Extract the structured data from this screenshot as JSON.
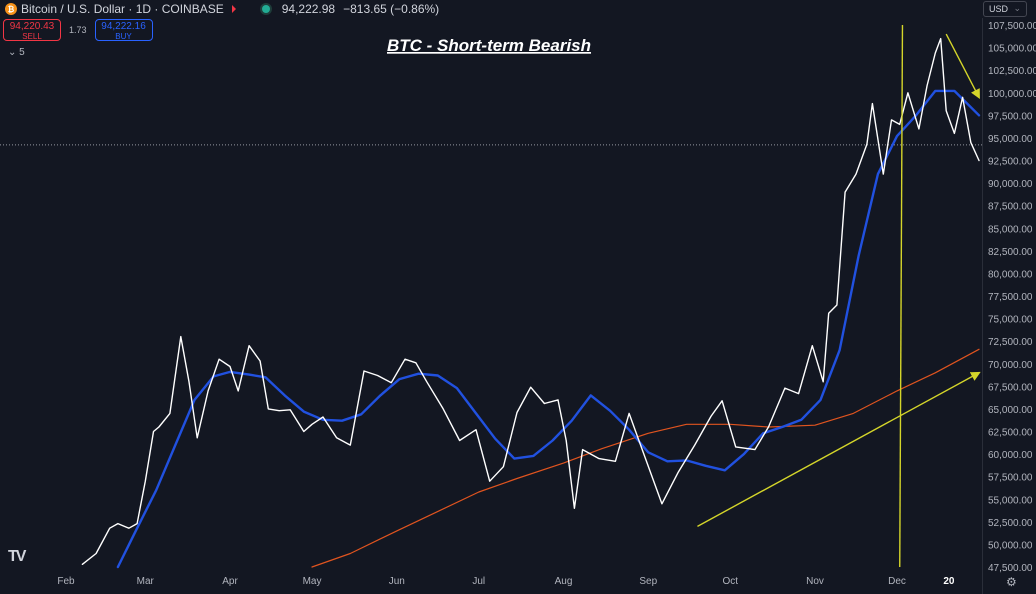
{
  "header": {
    "symbol": "Bitcoin / U.S. Dollar · 1D · COINBASE",
    "last_price": "94,222.98",
    "change": "−813.65 (−0.86%)",
    "sell_price": "94,220.43",
    "sell_label": "SELL",
    "spread": "1.73",
    "buy_price": "94,222.16",
    "buy_label": "BUY",
    "indicators_count": "5",
    "currency": "USD",
    "logo_glyph": "₿",
    "watermark": "TV"
  },
  "colors": {
    "background": "#131722",
    "price_line": "#ffffff",
    "ema_short": "#2151e0",
    "ema_long": "#e0541f",
    "annotation": "#d4d52a"
  },
  "chart_data": {
    "type": "line",
    "title": "BTC - Short-term Bearish",
    "xlabel": "",
    "ylabel": "",
    "x_ticks": [
      "Feb",
      "Mar",
      "Apr",
      "May",
      "Jun",
      "Jul",
      "Aug",
      "Sep",
      "Oct",
      "Nov",
      "Dec",
      "20"
    ],
    "y_ticks": [
      "107,500.00",
      "105,000.00",
      "102,500.00",
      "100,000.00",
      "97,500.00",
      "95,000.00",
      "92,500.00",
      "90,000.00",
      "87,500.00",
      "85,000.00",
      "82,500.00",
      "80,000.00",
      "77,500.00",
      "75,000.00",
      "72,500.00",
      "70,000.00",
      "67,500.00",
      "65,000.00",
      "62,500.00",
      "60,000.00",
      "57,500.00",
      "55,000.00",
      "52,500.00",
      "50,000.00",
      "47,500.00"
    ],
    "ylim": [
      47500,
      107500
    ],
    "current_price_line": 94222.98,
    "grid": false,
    "series": [
      {
        "name": "",
        "role": "price",
        "x": [
          "2024-02-07",
          "2024-02-12",
          "2024-02-17",
          "2024-02-20",
          "2024-02-24",
          "2024-02-27",
          "2024-03-01",
          "2024-03-04",
          "2024-03-06",
          "2024-03-10",
          "2024-03-14",
          "2024-03-17",
          "2024-03-20",
          "2024-03-24",
          "2024-03-28",
          "2024-04-01",
          "2024-04-04",
          "2024-04-08",
          "2024-04-12",
          "2024-04-15",
          "2024-04-19",
          "2024-04-23",
          "2024-04-28",
          "2024-05-01",
          "2024-05-05",
          "2024-05-10",
          "2024-05-15",
          "2024-05-20",
          "2024-05-25",
          "2024-05-30",
          "2024-06-04",
          "2024-06-08",
          "2024-06-12",
          "2024-06-18",
          "2024-06-24",
          "2024-06-30",
          "2024-07-05",
          "2024-07-10",
          "2024-07-15",
          "2024-07-20",
          "2024-07-25",
          "2024-07-30",
          "2024-08-02",
          "2024-08-05",
          "2024-08-08",
          "2024-08-14",
          "2024-08-20",
          "2024-08-25",
          "2024-08-31",
          "2024-09-06",
          "2024-09-12",
          "2024-09-18",
          "2024-09-24",
          "2024-09-28",
          "2024-10-03",
          "2024-10-10",
          "2024-10-15",
          "2024-10-21",
          "2024-10-26",
          "2024-10-31",
          "2024-11-04",
          "2024-11-06",
          "2024-11-09",
          "2024-11-12",
          "2024-11-16",
          "2024-11-20",
          "2024-11-22",
          "2024-11-26",
          "2024-11-29",
          "2024-12-02",
          "2024-12-05",
          "2024-12-09",
          "2024-12-12",
          "2024-12-15",
          "2024-12-17",
          "2024-12-19",
          "2024-12-22",
          "2024-12-25",
          "2024-12-28",
          "2024-12-31"
        ],
        "y": [
          47800,
          49000,
          51800,
          52300,
          51800,
          52300,
          57000,
          62500,
          63000,
          64500,
          73000,
          68000,
          61800,
          67000,
          70500,
          69700,
          67000,
          72000,
          70300,
          65000,
          64800,
          64900,
          62500,
          63300,
          64100,
          61800,
          61000,
          69200,
          68700,
          67900,
          70500,
          70100,
          68000,
          65000,
          61500,
          62700,
          57000,
          58600,
          64600,
          67400,
          65600,
          66000,
          61500,
          54000,
          60500,
          59500,
          59200,
          64500,
          59500,
          54500,
          58000,
          61000,
          64200,
          65900,
          60800,
          60500,
          63000,
          67300,
          66700,
          72000,
          68000,
          75600,
          76500,
          89000,
          91000,
          94300,
          98800,
          91000,
          97000,
          96500,
          100000,
          96000,
          100800,
          104400,
          106000,
          98000,
          95500,
          99500,
          94500,
          92500
        ]
      },
      {
        "name": "",
        "role": "short_ma",
        "x": [
          "2024-02-20",
          "2024-02-27",
          "2024-03-05",
          "2024-03-12",
          "2024-03-19",
          "2024-03-26",
          "2024-04-01",
          "2024-04-08",
          "2024-04-14",
          "2024-04-21",
          "2024-04-28",
          "2024-05-05",
          "2024-05-12",
          "2024-05-19",
          "2024-05-26",
          "2024-06-02",
          "2024-06-09",
          "2024-06-16",
          "2024-06-23",
          "2024-06-30",
          "2024-07-07",
          "2024-07-14",
          "2024-07-21",
          "2024-07-28",
          "2024-08-04",
          "2024-08-11",
          "2024-08-18",
          "2024-08-25",
          "2024-09-01",
          "2024-09-08",
          "2024-09-15",
          "2024-09-22",
          "2024-09-29",
          "2024-10-06",
          "2024-10-13",
          "2024-10-20",
          "2024-10-27",
          "2024-11-03",
          "2024-11-10",
          "2024-11-17",
          "2024-11-24",
          "2024-12-01",
          "2024-12-08",
          "2024-12-15",
          "2024-12-22",
          "2024-12-31"
        ],
        "y": [
          47500,
          51800,
          56000,
          61000,
          66000,
          68600,
          69100,
          68800,
          68500,
          66500,
          64700,
          63800,
          63700,
          64400,
          66500,
          68300,
          68900,
          68700,
          67300,
          64500,
          61700,
          59500,
          59800,
          61500,
          63700,
          66500,
          64800,
          62700,
          60200,
          59200,
          59300,
          58700,
          58200,
          60000,
          62300,
          63000,
          63800,
          66000,
          71500,
          82000,
          91000,
          95200,
          97500,
          100200,
          100200,
          97500
        ]
      },
      {
        "name": "",
        "role": "long_ma",
        "x": [
          "2024-05-01",
          "2024-05-15",
          "2024-06-01",
          "2024-06-15",
          "2024-07-01",
          "2024-07-15",
          "2024-08-01",
          "2024-08-15",
          "2024-09-01",
          "2024-09-15",
          "2024-10-01",
          "2024-10-15",
          "2024-11-01",
          "2024-11-15",
          "2024-12-01",
          "2024-12-15",
          "2024-12-31"
        ],
        "y": [
          47500,
          49000,
          51500,
          53500,
          55800,
          57300,
          59000,
          60600,
          62300,
          63300,
          63300,
          63000,
          63200,
          64500,
          67000,
          69000,
          71600
        ]
      }
    ],
    "annotations": [
      {
        "type": "trend_arrow",
        "from": [
          "2024-09-19",
          52000
        ],
        "to": [
          "2024-12-31",
          69000
        ]
      },
      {
        "type": "trend_arrow",
        "from": [
          "2024-12-19",
          106500
        ],
        "to": [
          "2024-12-31",
          99500
        ]
      },
      {
        "type": "vertical_line",
        "from": [
          "2024-12-02",
          47500
        ],
        "to": [
          "2024-12-03",
          107500
        ]
      }
    ]
  }
}
